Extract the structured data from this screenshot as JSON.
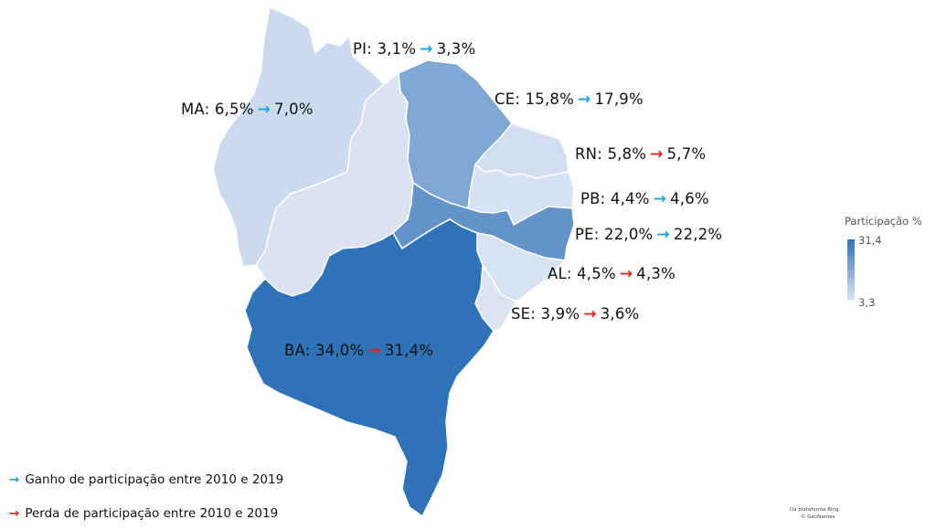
{
  "legend": {
    "title": "Participação %",
    "max": "31,4",
    "min": "3,3",
    "color_max": "#2e72b7",
    "color_min": "#dce5f4"
  },
  "key": {
    "gain": "Ganho de participação entre 2010 e 2019",
    "loss": "Perda de participação entre 2010 e 2019",
    "gain_color": "#1ba4df",
    "loss_color": "#e0241f",
    "gain_arrow": "→",
    "loss_arrow": "→"
  },
  "credits": {
    "line1": "Da plataforma Bing",
    "line2": "© GeoNames"
  },
  "states": [
    {
      "code": "PI",
      "from": "3,1%",
      "to": "3,3%",
      "trend": "up",
      "arrow": "→",
      "value_2019": 3.3,
      "fill": "#d9e3f2"
    },
    {
      "code": "MA",
      "from": "6,5%",
      "to": "7,0%",
      "trend": "up",
      "arrow": "→",
      "value_2019": 7.0,
      "fill": "#ccdaee"
    },
    {
      "code": "CE",
      "from": "15,8%",
      "to": "17,9%",
      "trend": "up",
      "arrow": "→",
      "value_2019": 17.9,
      "fill": "#7ea7d3"
    },
    {
      "code": "RN",
      "from": "5,8%",
      "to": "5,7%",
      "trend": "down",
      "arrow": "→",
      "value_2019": 5.7,
      "fill": "#d2def0"
    },
    {
      "code": "PB",
      "from": "4,4%",
      "to": "4,6%",
      "trend": "up",
      "arrow": "→",
      "value_2019": 4.6,
      "fill": "#d6e1f2"
    },
    {
      "code": "PE",
      "from": "22,0%",
      "to": "22,2%",
      "trend": "up",
      "arrow": "→",
      "value_2019": 22.2,
      "fill": "#6393c8"
    },
    {
      "code": "AL",
      "from": "4,5%",
      "to": "4,3%",
      "trend": "down",
      "arrow": "→",
      "value_2019": 4.3,
      "fill": "#d7e2f2"
    },
    {
      "code": "SE",
      "from": "3,9%",
      "to": "3,6%",
      "trend": "down",
      "arrow": "→",
      "value_2019": 3.6,
      "fill": "#dae4f3"
    },
    {
      "code": "BA",
      "from": "34,0%",
      "to": "31,4%",
      "trend": "down",
      "arrow": "→",
      "value_2019": 31.4,
      "fill": "#2e72b7"
    }
  ]
}
